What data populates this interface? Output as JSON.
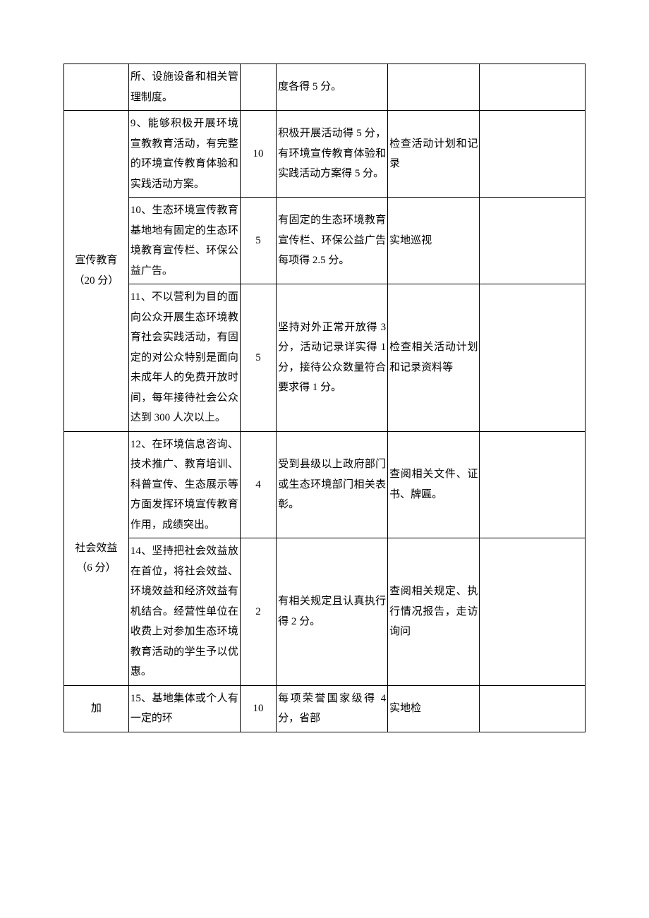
{
  "rows": [
    {
      "category": null,
      "item": "所、设施设备和相关管理制度。",
      "score": "",
      "rule": "度各得 5 分。",
      "method": "",
      "remark": ""
    },
    {
      "category": {
        "text": "宣传教育（20 分）",
        "rowspan": 3
      },
      "item": "9、能够积极开展环境宣教教育活动，有完整的环境宣传教育体验和实践活动方案。",
      "score": "10",
      "rule": "积极开展活动得 5 分，有环境宣传教育体验和实践活动方案得 5 分。",
      "method": "检查活动计划和记录",
      "remark": ""
    },
    {
      "category": null,
      "item": "10、生态环境宣传教育基地地有固定的生态环境教育宣传栏、环保公益广告。",
      "score": "5",
      "rule": "有固定的生态环境教育宣传栏、环保公益广告每项得 2.5 分。",
      "method": "实地巡视",
      "remark": ""
    },
    {
      "category": null,
      "item": "11、不以营利为目的面向公众开展生态环境教育社会实践活动，有固定的对公众特别是面向未成年人的免费开放时间，每年接待社会公众达到 300 人次以上。",
      "score": "5",
      "rule": "坚持对外正常开放得 3 分，活动记录详实得 1 分，接待公众数量符合要求得 1 分。",
      "method": "检查相关活动计划和记录资料等",
      "remark": ""
    },
    {
      "category": {
        "text": "社会效益\n（6 分）",
        "rowspan": 2
      },
      "item": "12、在环境信息咨询、技术推广、教育培训、科普宣传、生态展示等方面发挥环境宣传教育作用，成绩突出。",
      "score": "4",
      "rule": "受到县级以上政府部门或生态环境部门相关表彰。",
      "method": "查阅相关文件、证书、牌匾。",
      "remark": ""
    },
    {
      "category": null,
      "item": "14、坚持把社会效益放在首位，将社会效益、环境效益和经济效益有机结合。经营性单位在收费上对参加生态环境教育活动的学生予以优惠。",
      "score": "2",
      "rule": "有相关规定且认真执行得 2 分。",
      "method": "查阅相关规定、执行情况报告，走访询问",
      "remark": ""
    },
    {
      "category": {
        "text": "加",
        "rowspan": 1
      },
      "item": "15、基地集体或个人有一定的环",
      "score": "10",
      "rule": "每项荣誉国家级得 4 分，省部",
      "method": "实地检",
      "remark": ""
    }
  ]
}
